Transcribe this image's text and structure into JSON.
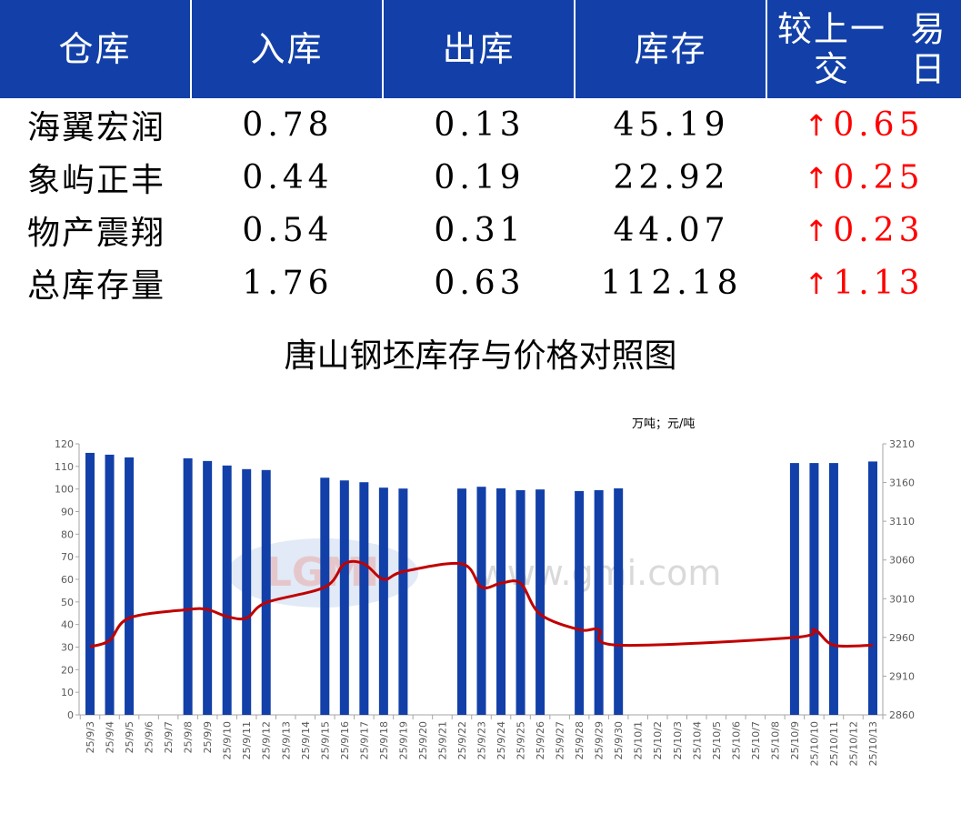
{
  "table": {
    "headers": [
      "仓库",
      "入库",
      "出库",
      "库存",
      "较上一交易日"
    ],
    "header_lines": [
      [
        "仓库"
      ],
      [
        "入库"
      ],
      [
        "出库"
      ],
      [
        "库存"
      ],
      [
        "较上一交",
        "易日"
      ]
    ],
    "rows": [
      {
        "name": "海翼宏润",
        "in": "0.78",
        "out": "0.13",
        "stock": "45.19",
        "change": "0.65",
        "direction": "up"
      },
      {
        "name": "象屿正丰",
        "in": "0.44",
        "out": "0.19",
        "stock": "22.92",
        "change": "0.25",
        "direction": "up"
      },
      {
        "name": "物产震翔",
        "in": "0.54",
        "out": "0.31",
        "stock": "44.07",
        "change": "0.23",
        "direction": "up"
      },
      {
        "name": "总库存量",
        "in": "1.76",
        "out": "0.63",
        "stock": "112.18",
        "change": "1.13",
        "direction": "up"
      }
    ],
    "up_arrow": "↑",
    "colors": {
      "header_bg": "#1240a8",
      "change_text": "#ff0000"
    }
  },
  "chart_data": {
    "type": "bar+line",
    "title": "唐山钢坯库存与价格对照图",
    "unit_label": "万吨；元/吨",
    "watermark": "LGMI www.lgmi.com",
    "categories": [
      "25/9/3",
      "25/9/4",
      "25/9/5",
      "25/9/6",
      "25/9/7",
      "25/9/8",
      "25/9/9",
      "25/9/10",
      "25/9/11",
      "25/9/12",
      "25/9/13",
      "25/9/14",
      "25/9/15",
      "25/9/16",
      "25/9/17",
      "25/9/18",
      "25/9/19",
      "25/9/20",
      "25/9/21",
      "25/9/22",
      "25/9/23",
      "25/9/24",
      "25/9/25",
      "25/9/26",
      "25/9/27",
      "25/9/28",
      "25/9/29",
      "25/9/30",
      "25/10/1",
      "25/10/2",
      "25/10/3",
      "25/10/4",
      "25/10/5",
      "25/10/6",
      "25/10/7",
      "25/10/8",
      "25/10/9",
      "25/10/10",
      "25/10/11",
      "25/10/12",
      "25/10/13"
    ],
    "series": [
      {
        "type": "bar",
        "axis": "left",
        "color": "#1240a8",
        "values": [
          116,
          115.2,
          114,
          null,
          null,
          113.6,
          112.4,
          110.4,
          108.8,
          108.4,
          null,
          null,
          105,
          103.8,
          103,
          100.6,
          100.2,
          null,
          null,
          100.2,
          101,
          100.3,
          99.5,
          99.8,
          null,
          99.1,
          99.5,
          100.3,
          null,
          null,
          null,
          null,
          null,
          null,
          null,
          null,
          111.5,
          111.5,
          111.5,
          null,
          112.18
        ]
      },
      {
        "type": "line",
        "axis": "right",
        "color": "#c00000",
        "values": [
          2948,
          2956,
          2985,
          null,
          null,
          2996,
          2996,
          2987,
          2985,
          3005,
          null,
          null,
          3025,
          3055,
          3055,
          3035,
          3045,
          null,
          null,
          3055,
          3025,
          3030,
          3030,
          2990,
          null,
          2970,
          2970,
          2950,
          null,
          null,
          null,
          null,
          null,
          null,
          null,
          null,
          2960,
          2970,
          2950,
          null,
          2950
        ]
      }
    ],
    "left_axis": {
      "range": [
        0,
        120
      ],
      "ticks": [
        0,
        10,
        20,
        30,
        40,
        50,
        60,
        70,
        80,
        90,
        100,
        110,
        120
      ]
    },
    "right_axis": {
      "range": [
        2860,
        3210
      ],
      "ticks": [
        2860,
        2910,
        2960,
        3010,
        3060,
        3110,
        3160,
        3210
      ]
    },
    "grid": false,
    "legend": "none"
  }
}
